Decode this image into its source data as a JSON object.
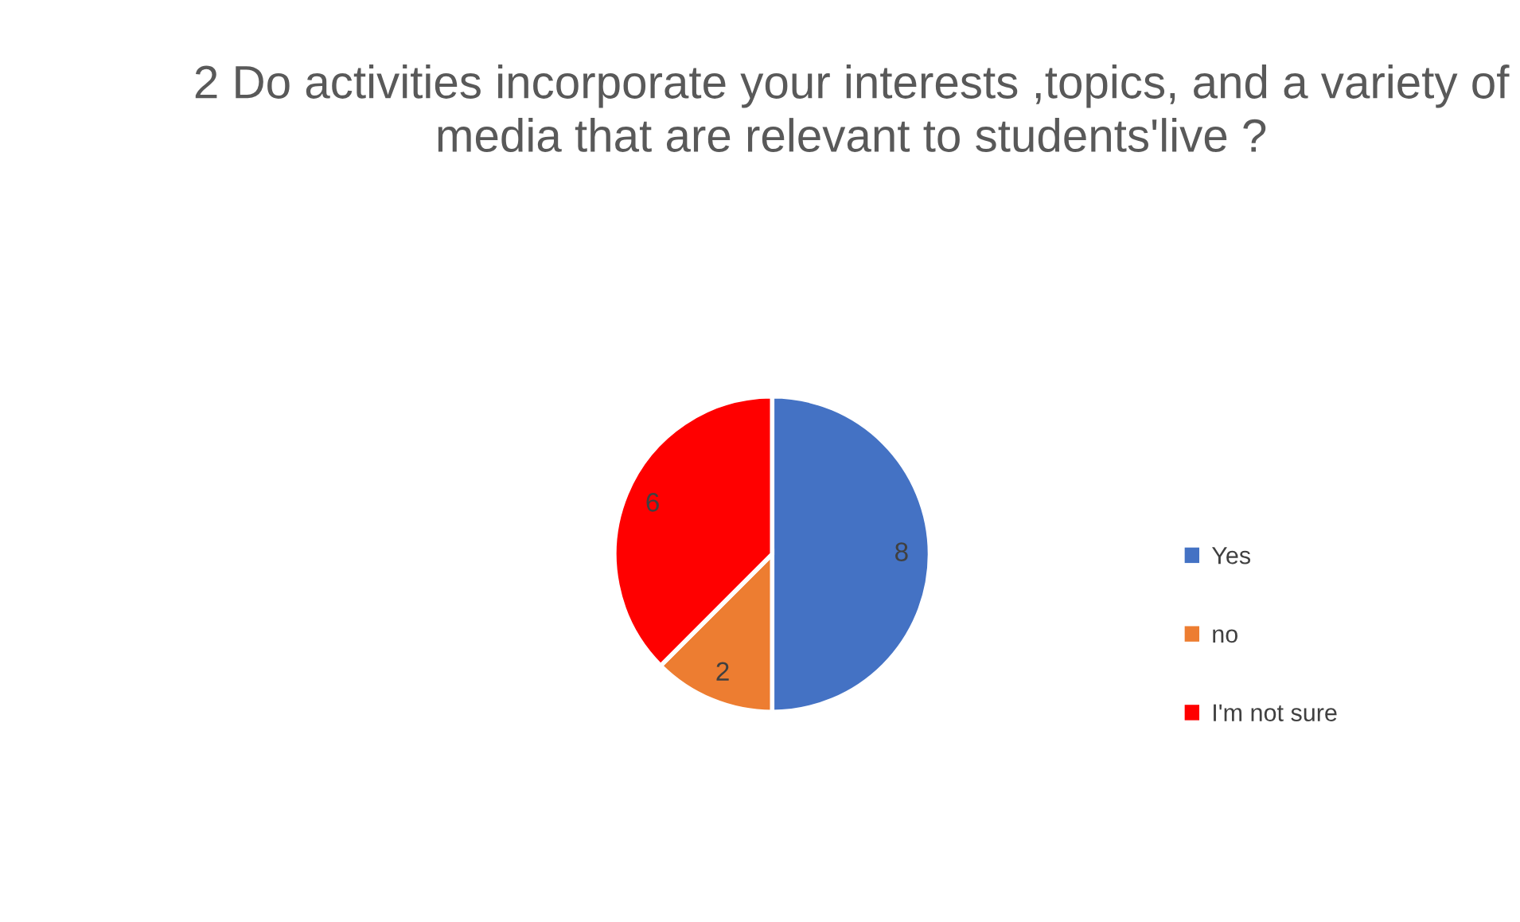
{
  "chart_data": {
    "type": "pie",
    "title": "2 Do activities incorporate your interests ,topics, and a variety of media that are relevant to students'live ?",
    "categories": [
      "Yes",
      "no",
      "I'm not sure"
    ],
    "values": [
      8,
      2,
      6
    ],
    "colors": [
      "#4472c4",
      "#ed7d31",
      "#ff0000"
    ],
    "data_labels": true,
    "legend": "right"
  }
}
